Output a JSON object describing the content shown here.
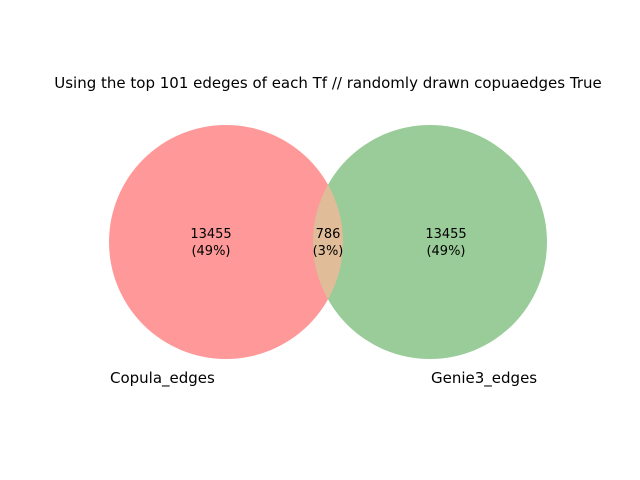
{
  "chart_data": {
    "type": "venn",
    "title": "Using the top 101 edeges of each Tf // randomly drawn copuaedges True",
    "sets": [
      {
        "name": "Copula_edges",
        "color": "#ff9999"
      },
      {
        "name": "Genie3_edges",
        "color": "#99cc99"
      }
    ],
    "overlap_color": "#e0bc99",
    "regions": [
      {
        "id": "left_only",
        "sets": [
          "Copula_edges"
        ],
        "value": "13455",
        "percent": "(49%)"
      },
      {
        "id": "intersection",
        "sets": [
          "Copula_edges",
          "Genie3_edges"
        ],
        "value": "786",
        "percent": "(3%)"
      },
      {
        "id": "right_only",
        "sets": [
          "Genie3_edges"
        ],
        "value": "13455",
        "percent": "(49%)"
      }
    ]
  }
}
